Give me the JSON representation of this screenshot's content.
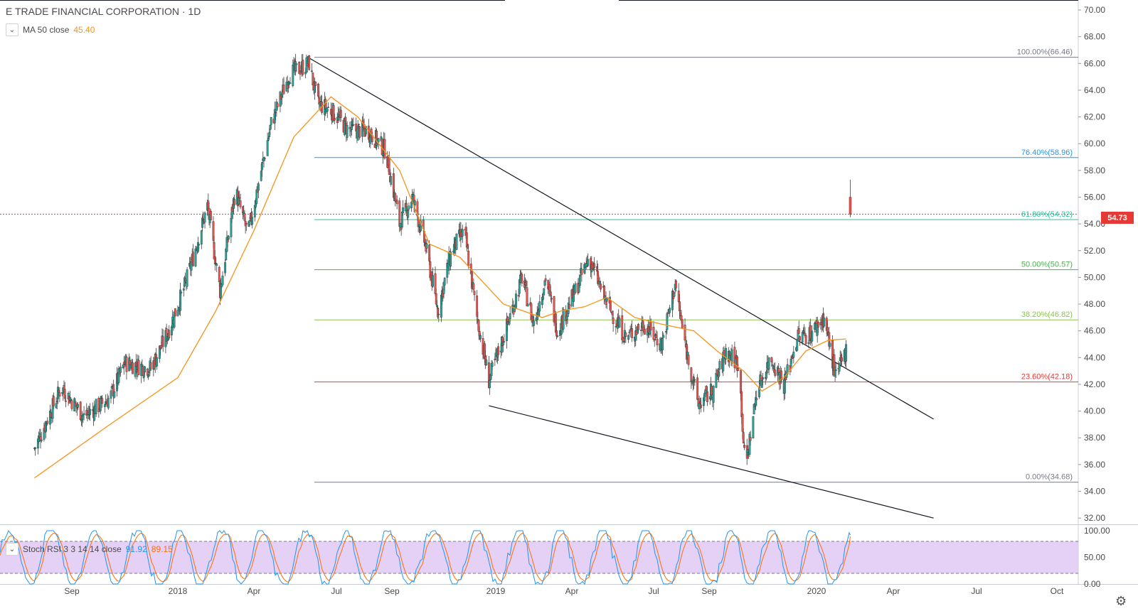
{
  "header": {
    "symbol_title": "E TRADE FINANCIAL CORPORATION · 1D",
    "ma_label": "MA 50 close",
    "ma_value": "45.40"
  },
  "stoch": {
    "label": "Stoch RSI 3 3 14 14 close",
    "k_value": "91.92",
    "d_value": "89.15",
    "axis_ticks": [
      "100.00",
      "50.00",
      "0.00"
    ]
  },
  "last_price": "54.73",
  "colors": {
    "up": "#26a69a",
    "down": "#ef5350",
    "ma": "#f7931a",
    "fib_100": "#787b86",
    "fib_764": "#2196f3",
    "fib_618": "#26c6a0",
    "fib_50": "#4caf50",
    "fib_382": "#8bc34a",
    "fib_236": "#e53935",
    "fib_0": "#787b86",
    "stoch_k": "#2196f3",
    "stoch_d": "#ff6d00",
    "stoch_fill": "#e1c8f5"
  },
  "chart_data": {
    "type": "candlestick",
    "title": "E TRADE FINANCIAL CORPORATION · 1D",
    "ylim": [
      31.0,
      70.5
    ],
    "y_ticks": [
      "70.00",
      "68.00",
      "66.00",
      "64.00",
      "62.00",
      "60.00",
      "58.00",
      "56.00",
      "54.00",
      "52.00",
      "50.00",
      "48.00",
      "46.00",
      "44.00",
      "42.00",
      "40.00",
      "38.00",
      "36.00",
      "34.00",
      "32.00"
    ],
    "x_ticks": [
      "Sep",
      "2018",
      "Apr",
      "Jul",
      "Sep",
      "2019",
      "Apr",
      "Jul",
      "Sep",
      "2020",
      "Apr",
      "Jul",
      "Oct"
    ],
    "close_path": [
      [
        "2017-07-20",
        37.2
      ],
      [
        "2017-08-20",
        41.8
      ],
      [
        "2017-09-15",
        39.6
      ],
      [
        "2017-10-15",
        41.0
      ],
      [
        "2017-11-01",
        43.6
      ],
      [
        "2017-12-01",
        43.2
      ],
      [
        "2017-12-20",
        45.8
      ],
      [
        "2018-01-10",
        49.5
      ],
      [
        "2018-02-05",
        55.3
      ],
      [
        "2018-02-20",
        49.0
      ],
      [
        "2018-03-10",
        56.5
      ],
      [
        "2018-03-25",
        53.2
      ],
      [
        "2018-04-20",
        61.5
      ],
      [
        "2018-05-10",
        65.2
      ],
      [
        "2018-06-01",
        66.0
      ],
      [
        "2018-06-10",
        63.0
      ],
      [
        "2018-06-25",
        62.5
      ],
      [
        "2018-07-15",
        61.0
      ],
      [
        "2018-08-05",
        61.0
      ],
      [
        "2018-08-25",
        59.5
      ],
      [
        "2018-09-10",
        54.0
      ],
      [
        "2018-09-25",
        56.0
      ],
      [
        "2018-10-10",
        52.5
      ],
      [
        "2018-10-25",
        47.5
      ],
      [
        "2018-11-10",
        52.0
      ],
      [
        "2018-11-25",
        53.5
      ],
      [
        "2018-12-10",
        47.0
      ],
      [
        "2018-12-24",
        42.3
      ],
      [
        "2019-01-15",
        46.5
      ],
      [
        "2019-02-01",
        50.0
      ],
      [
        "2019-02-15",
        46.5
      ],
      [
        "2019-03-01",
        50.0
      ],
      [
        "2019-03-15",
        46.0
      ],
      [
        "2019-04-05",
        49.0
      ],
      [
        "2019-04-20",
        51.5
      ],
      [
        "2019-05-10",
        48.0
      ],
      [
        "2019-05-31",
        45.5
      ],
      [
        "2019-06-20",
        46.5
      ],
      [
        "2019-07-10",
        45.0
      ],
      [
        "2019-07-25",
        49.5
      ],
      [
        "2019-08-05",
        45.0
      ],
      [
        "2019-08-20",
        40.5
      ],
      [
        "2019-09-05",
        41.5
      ],
      [
        "2019-09-20",
        44.5
      ],
      [
        "2019-10-05",
        43.5
      ],
      [
        "2019-10-12",
        35.5
      ],
      [
        "2019-10-25",
        41.5
      ],
      [
        "2019-11-10",
        44.0
      ],
      [
        "2019-11-25",
        42.0
      ],
      [
        "2019-12-10",
        45.5
      ],
      [
        "2019-12-25",
        45.8
      ],
      [
        "2020-01-10",
        47.0
      ],
      [
        "2020-01-24",
        42.5
      ],
      [
        "2020-02-05",
        44.5
      ]
    ],
    "last_candle": {
      "date": "2020-02-10",
      "open": 56.0,
      "high": 57.3,
      "low": 54.5,
      "close": 54.73
    },
    "ma50_path": [
      [
        "2017-07-20",
        35.0
      ],
      [
        "2017-10-15",
        39.0
      ],
      [
        "2018-01-01",
        42.5
      ],
      [
        "2018-02-15",
        47.5
      ],
      [
        "2018-04-01",
        53.5
      ],
      [
        "2018-05-15",
        60.5
      ],
      [
        "2018-06-25",
        63.5
      ],
      [
        "2018-07-25",
        62.0
      ],
      [
        "2018-09-10",
        58.0
      ],
      [
        "2018-10-15",
        52.5
      ],
      [
        "2018-11-20",
        51.5
      ],
      [
        "2019-01-10",
        48.0
      ],
      [
        "2019-02-25",
        47.0
      ],
      [
        "2019-03-20",
        47.5
      ],
      [
        "2019-04-15",
        47.8
      ],
      [
        "2019-05-10",
        48.5
      ],
      [
        "2019-06-10",
        47.0
      ],
      [
        "2019-07-10",
        46.5
      ],
      [
        "2019-08-15",
        46.0
      ],
      [
        "2019-09-10",
        44.5
      ],
      [
        "2019-10-10",
        43.0
      ],
      [
        "2019-10-31",
        41.5
      ],
      [
        "2019-11-25",
        42.5
      ],
      [
        "2019-12-20",
        44.5
      ],
      [
        "2020-01-15",
        45.3
      ],
      [
        "2020-02-05",
        45.4
      ]
    ],
    "fib_levels": [
      {
        "label": "100.00%(66.46)",
        "value": 66.46,
        "color_key": "fib_100"
      },
      {
        "label": "76.40%(58.96)",
        "value": 58.96,
        "color_key": "fib_764"
      },
      {
        "label": "61.80%(54.32)",
        "value": 54.32,
        "color_key": "fib_618"
      },
      {
        "label": "50.00%(50.57)",
        "value": 50.57,
        "color_key": "fib_50"
      },
      {
        "label": "38.20%(46.82)",
        "value": 46.82,
        "color_key": "fib_382"
      },
      {
        "label": "23.60%(42.18)",
        "value": 42.18,
        "color_key": "fib_236"
      },
      {
        "label": "0.00%(34.68)",
        "value": 34.68,
        "color_key": "fib_0"
      }
    ],
    "trendlines": [
      {
        "from": [
          "2018-06-01",
          66.4
        ],
        "to": [
          "2020-05-15",
          39.4
        ]
      },
      {
        "from": [
          "2018-12-24",
          40.4
        ],
        "to": [
          "2020-05-15",
          32.0
        ]
      }
    ],
    "stoch_rsi": {
      "k_last": 91.92,
      "d_last": 89.15,
      "upper_band": 80,
      "lower_band": 20
    }
  }
}
